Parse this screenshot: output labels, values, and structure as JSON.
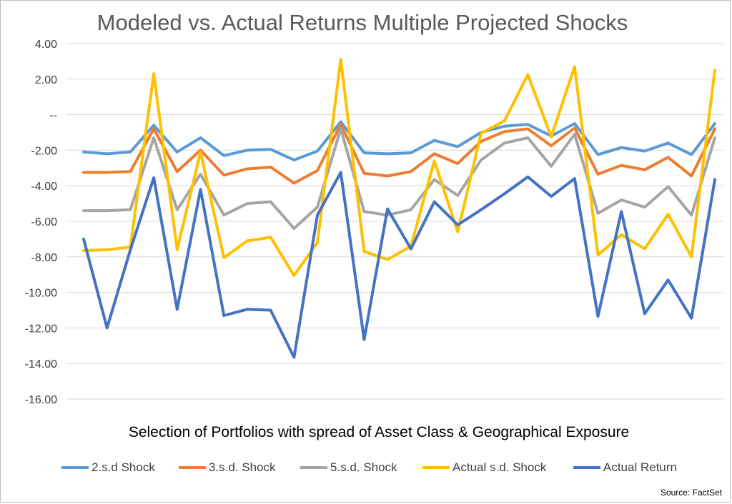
{
  "chart_data": {
    "type": "line",
    "title": "Modeled vs. Actual Returns Multiple Projected Shocks",
    "xlabel": "Selection of Portfolios with spread of Asset Class & Geographical Exposure",
    "ylabel": "",
    "ylim": [
      -16,
      4
    ],
    "yticks": [
      "4.00",
      "2.00",
      "--",
      "-2.00",
      "-4.00",
      "-6.00",
      "-8.00",
      "-10.00",
      "-12.00",
      "-14.00",
      "-16.00"
    ],
    "grid": "horizontal",
    "legend": "bottom",
    "source": "Source: FactSet",
    "series": [
      {
        "name": "2.s.d Shock",
        "color": "#5b9bd5",
        "values": [
          -2.1,
          -2.2,
          -2.1,
          -0.6,
          -2.1,
          -1.3,
          -2.3,
          -2.0,
          -1.95,
          -2.55,
          -2.05,
          -0.4,
          -2.15,
          -2.2,
          -2.15,
          -1.45,
          -1.8,
          -1.0,
          -0.65,
          -0.55,
          -1.2,
          -0.5,
          -2.25,
          -1.85,
          -2.05,
          -1.6,
          -2.25,
          -0.5
        ]
      },
      {
        "name": "3.s.d. Shock",
        "color": "#ed7d31",
        "values": [
          -3.25,
          -3.25,
          -3.2,
          -0.8,
          -3.2,
          -2.0,
          -3.4,
          -3.05,
          -2.95,
          -3.85,
          -3.15,
          -0.55,
          -3.3,
          -3.45,
          -3.2,
          -2.2,
          -2.75,
          -1.5,
          -0.95,
          -0.8,
          -1.75,
          -0.75,
          -3.35,
          -2.85,
          -3.1,
          -2.4,
          -3.45,
          -0.8
        ]
      },
      {
        "name": "5.s.d. Shock",
        "color": "#a5a5a5",
        "values": [
          -5.4,
          -5.4,
          -5.35,
          -1.3,
          -5.35,
          -3.35,
          -5.65,
          -5.0,
          -4.9,
          -6.4,
          -5.2,
          -0.8,
          -5.45,
          -5.65,
          -5.35,
          -3.65,
          -4.55,
          -2.55,
          -1.6,
          -1.3,
          -2.9,
          -1.1,
          -5.55,
          -4.8,
          -5.2,
          -4.05,
          -5.65,
          -1.3
        ]
      },
      {
        "name": "Actual s.d. Shock",
        "color": "#ffc000",
        "values": [
          -7.65,
          -7.6,
          -7.45,
          2.3,
          -7.6,
          -2.1,
          -8.05,
          -7.1,
          -6.9,
          -9.05,
          -7.2,
          3.1,
          -7.7,
          -8.15,
          -7.4,
          -2.6,
          -6.6,
          -1.05,
          -0.35,
          2.25,
          -1.25,
          2.7,
          -7.9,
          -6.75,
          -7.55,
          -5.6,
          -8.0,
          2.5
        ]
      },
      {
        "name": "Actual Return",
        "color": "#4472c4",
        "values": [
          -7.0,
          -12.0,
          -7.6,
          -3.55,
          -10.95,
          -4.2,
          -11.3,
          -10.95,
          -11.0,
          -13.65,
          -5.65,
          -3.25,
          -12.65,
          -5.3,
          -7.55,
          -4.9,
          -6.2,
          -5.35,
          -4.45,
          -3.5,
          -4.6,
          -3.6,
          -11.35,
          -5.45,
          -11.2,
          -9.3,
          -11.45,
          -3.65
        ]
      }
    ]
  }
}
